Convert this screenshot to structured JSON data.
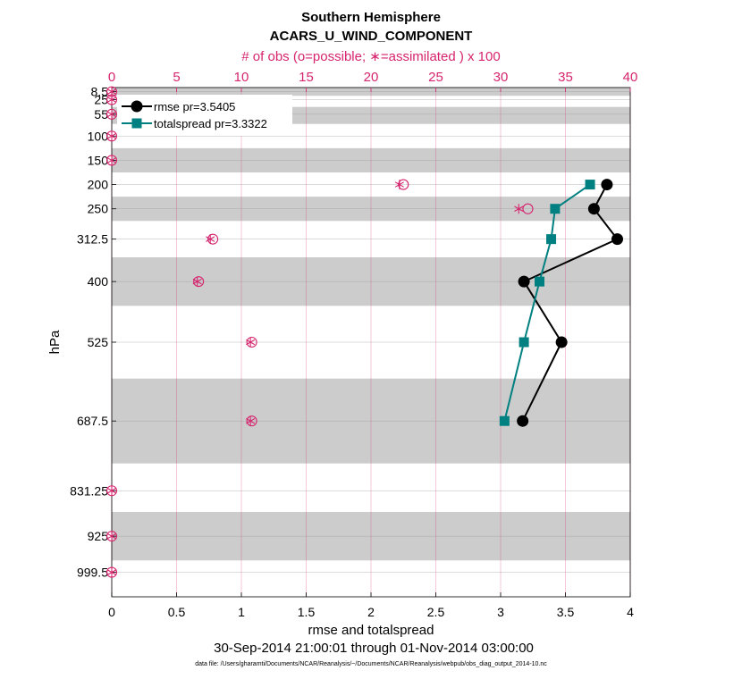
{
  "chart_data": {
    "type": "line",
    "title": "Southern Hemisphere",
    "subtitle": "ACARS_U_WIND_COMPONENT",
    "top_axis_label": "# of obs (o=possible; ∗=assimilated ) x 100",
    "xlabel": "rmse and totalspread",
    "ylabel": "hPa",
    "date_range": "30-Sep-2014 21:00:01 through 01-Nov-2014 03:00:00",
    "footnote": "data file: /Users/gharamti/Documents/NCAR/Reanalysis/~/Documents/NCAR/Reanalysis/webpub/obs_diag_output_2014-10.nc",
    "xlim": [
      0,
      4
    ],
    "x_ticks": [
      "0",
      "0.5",
      "1",
      "1.5",
      "2",
      "2.5",
      "3",
      "3.5",
      "4"
    ],
    "top_xlim": [
      0,
      40
    ],
    "top_ticks": [
      "0",
      "5",
      "10",
      "15",
      "20",
      "25",
      "30",
      "35",
      "40"
    ],
    "y_levels": [
      8.5,
      25,
      55,
      100,
      150,
      200,
      250,
      312.5,
      400,
      525,
      687.5,
      831.25,
      925,
      999.5
    ],
    "y_tick_labels": [
      "8.5",
      "25",
      "55",
      "100",
      "150",
      "200",
      "250",
      "312.5",
      "400",
      "525",
      "687.5",
      "831.25",
      "925",
      "999.5"
    ],
    "y_display_range": [
      0,
      1050
    ],
    "gray_bands": [
      [
        0,
        17
      ],
      [
        40,
        75
      ],
      [
        125,
        175
      ],
      [
        225,
        275
      ],
      [
        350,
        450
      ],
      [
        600,
        775
      ],
      [
        875,
        975
      ]
    ],
    "grid": true,
    "legend_position": "top-left",
    "series": [
      {
        "name": "rmse pr=3.5405",
        "color": "#000000",
        "marker": "circle",
        "levels": [
          200,
          250,
          312.5,
          400,
          525,
          687.5
        ],
        "values": [
          3.82,
          3.72,
          3.9,
          3.18,
          3.47,
          3.17
        ]
      },
      {
        "name": "totalspread pr=3.3322",
        "color": "#008080",
        "marker": "square",
        "levels": [
          200,
          250,
          312.5,
          400,
          525,
          687.5
        ],
        "values": [
          3.69,
          3.42,
          3.39,
          3.3,
          3.18,
          3.03
        ]
      }
    ],
    "obs_counts": {
      "color": "#d6246e",
      "levels": [
        8.5,
        25,
        55,
        100,
        150,
        200,
        250,
        312.5,
        400,
        525,
        687.5,
        831.25,
        925,
        999.5
      ],
      "possible": [
        0,
        0,
        0,
        0,
        0,
        22.5,
        32.1,
        7.8,
        6.7,
        10.8,
        10.8,
        0,
        0,
        0
      ],
      "assimilated": [
        0,
        0,
        0,
        0,
        0,
        22.2,
        31.4,
        7.6,
        6.6,
        10.7,
        10.7,
        0,
        0,
        0
      ]
    }
  }
}
